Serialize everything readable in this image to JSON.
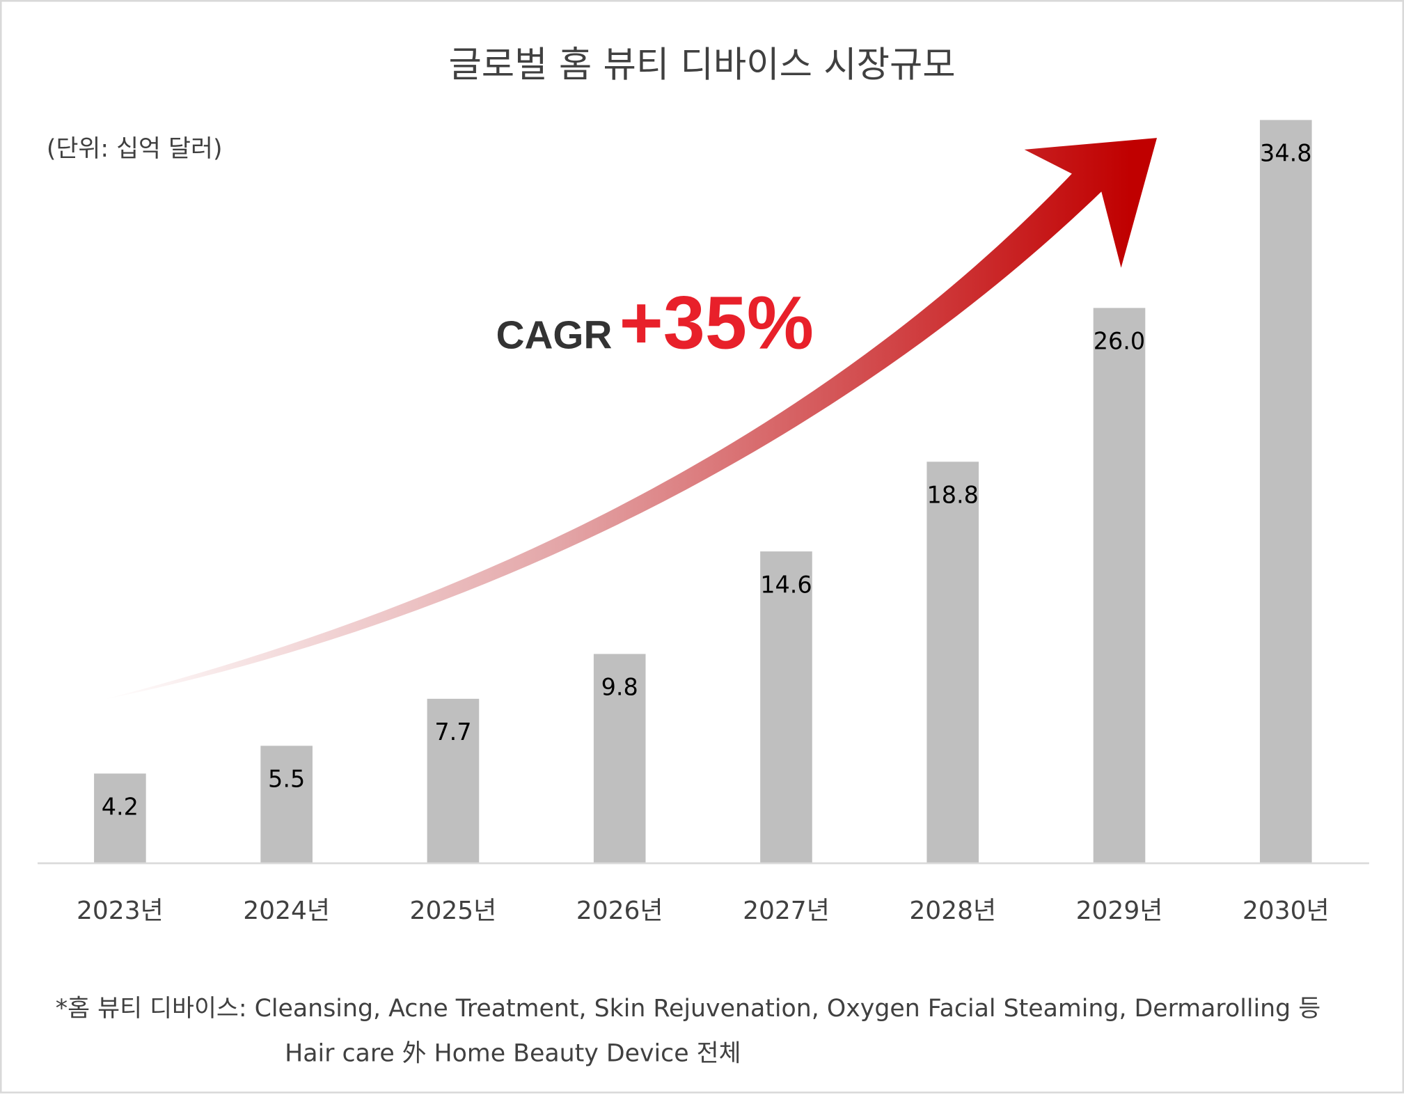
{
  "chart_data": {
    "type": "bar",
    "title": "글로벌 홈 뷰티 디바이스 시장규모",
    "unit_label": "(단위: 십억 달러)",
    "categories": [
      "2023년",
      "2024년",
      "2025년",
      "2026년",
      "2027년",
      "2028년",
      "2029년",
      "2030년"
    ],
    "values": [
      4.2,
      5.5,
      7.7,
      9.8,
      14.6,
      18.8,
      26.0,
      34.8
    ],
    "value_labels": [
      "4.2",
      "5.5",
      "7.7",
      "9.8",
      "14.6",
      "18.8",
      "26.0",
      "34.8"
    ],
    "ylim": [
      0,
      34.8
    ],
    "grid": false,
    "bar_color": "#bfbfbf",
    "annotation": {
      "label": "CAGR",
      "value": "+35%",
      "arrow_color": "#c00000",
      "value_color": "#e8202a"
    }
  },
  "footnote": {
    "line1": "*홈 뷰티 디바이스: Cleansing, Acne Treatment, Skin Rejuvenation, Oxygen Facial Steaming, Dermarolling 등",
    "line2": "Hair care 外 Home Beauty Device 전체"
  }
}
